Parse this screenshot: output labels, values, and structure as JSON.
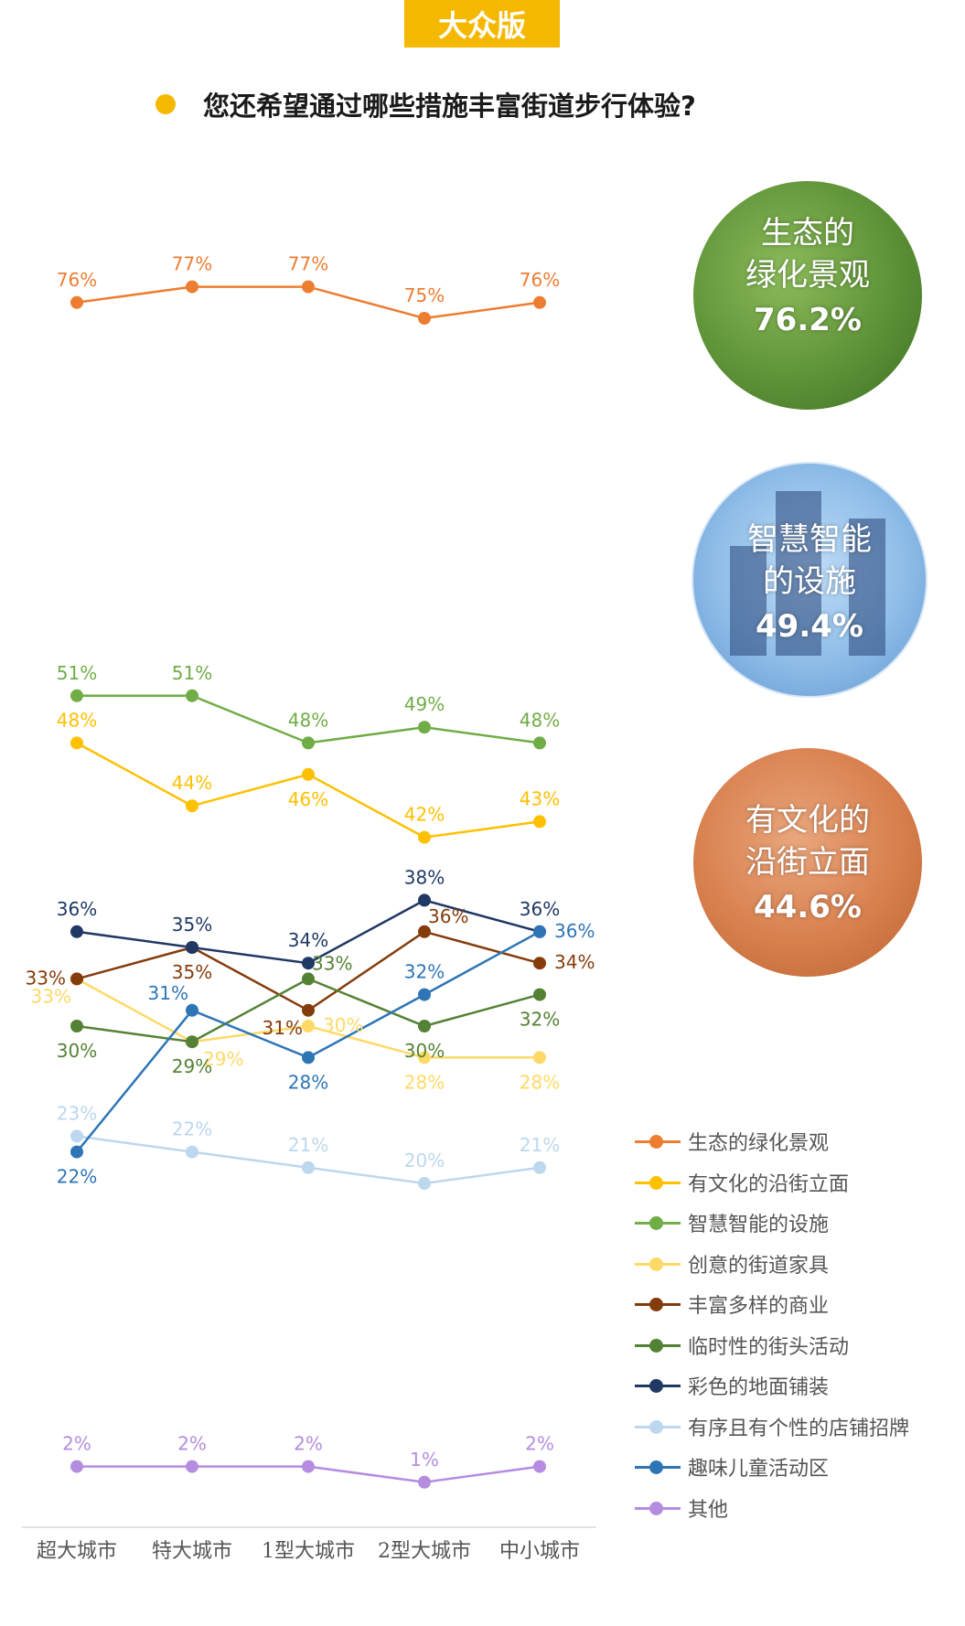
{
  "header": {
    "badge": "大众版",
    "question": "您还希望通过哪些措施丰富街道步行体验?"
  },
  "highlights": [
    {
      "line1": "生态的",
      "line2": "绿化景观",
      "value": "76.2%",
      "color": "#5a8f35"
    },
    {
      "line1": "智慧智能",
      "line2": "的设施",
      "value": "49.4%",
      "color": "#8fbde8"
    },
    {
      "line1": "有文化的",
      "line2": "沿街立面",
      "value": "44.6%",
      "color": "#d8804e"
    }
  ],
  "chart_data": {
    "type": "line",
    "categories": [
      "超大城市",
      "特大城市",
      "1型大城市",
      "2型大城市",
      "中小城市"
    ],
    "series": [
      {
        "name": "生态的绿化景观",
        "color": "#ed7d31",
        "values": [
          76,
          77,
          77,
          75,
          76
        ],
        "labels": [
          "76%",
          "77%",
          "77%",
          "75%",
          "76%"
        ],
        "pos": [
          "above",
          "above",
          "above",
          "above",
          "above"
        ]
      },
      {
        "name": "有文化的沿街立面",
        "color": "#ffc000",
        "values": [
          48,
          44,
          46,
          42,
          43
        ],
        "labels": [
          "48%",
          "44%",
          "46%",
          "42%",
          "43%"
        ],
        "pos": [
          "above",
          "above",
          "below",
          "above",
          "above"
        ]
      },
      {
        "name": "智慧智能的设施",
        "color": "#70ad47",
        "values": [
          51,
          51,
          48,
          49,
          48
        ],
        "labels": [
          "51%",
          "51%",
          "48%",
          "49%",
          "48%"
        ],
        "pos": [
          "above",
          "above",
          "above",
          "above",
          "above"
        ]
      },
      {
        "name": "创意的街道家具",
        "color": "#ffd966",
        "values": [
          33,
          29,
          30,
          28,
          28
        ],
        "labels": [
          "33%",
          "29%",
          "30%",
          "28%",
          "28%"
        ],
        "pos": [
          "belowleft",
          "belowright",
          "right",
          "below",
          "below"
        ]
      },
      {
        "name": "丰富多样的商业",
        "color": "#843c0c",
        "values": [
          33,
          35,
          31,
          36,
          34
        ],
        "labels": [
          "33%",
          "35%",
          "31%",
          "36%",
          "34%"
        ],
        "pos": [
          "left",
          "below",
          "belowleft",
          "aboveright",
          "right"
        ]
      },
      {
        "name": "临时性的街头活动",
        "color": "#548235",
        "values": [
          30,
          29,
          33,
          30,
          32
        ],
        "labels": [
          "30%",
          "29%",
          "33%",
          "30%",
          "32%"
        ],
        "pos": [
          "below",
          "below",
          "aboveright",
          "below",
          "below"
        ]
      },
      {
        "name": "彩色的地面铺装",
        "color": "#203864",
        "values": [
          36,
          35,
          34,
          38,
          36
        ],
        "labels": [
          "36%",
          "35%",
          "34%",
          "38%",
          "36%"
        ],
        "pos": [
          "above",
          "above",
          "above",
          "above",
          "above"
        ]
      },
      {
        "name": "有序且有个性的店铺招牌",
        "color": "#bdd7ee",
        "values": [
          23,
          22,
          21,
          20,
          21
        ],
        "labels": [
          "23%",
          "22%",
          "21%",
          "20%",
          "21%"
        ],
        "pos": [
          "above",
          "above",
          "above",
          "above",
          "above"
        ]
      },
      {
        "name": "趣味儿童活动区",
        "color": "#2e75b6",
        "values": [
          22,
          31,
          28,
          32,
          36
        ],
        "labels": [
          "22%",
          "31%",
          "28%",
          "32%",
          "36%"
        ],
        "pos": [
          "below",
          "aboveleft",
          "below",
          "above",
          "right"
        ]
      },
      {
        "name": "其他",
        "color": "#b48ce0",
        "values": [
          2,
          2,
          2,
          1,
          2
        ],
        "labels": [
          "2%",
          "2%",
          "2%",
          "1%",
          "2%"
        ],
        "pos": [
          "above",
          "above",
          "above",
          "above",
          "above"
        ]
      }
    ]
  }
}
